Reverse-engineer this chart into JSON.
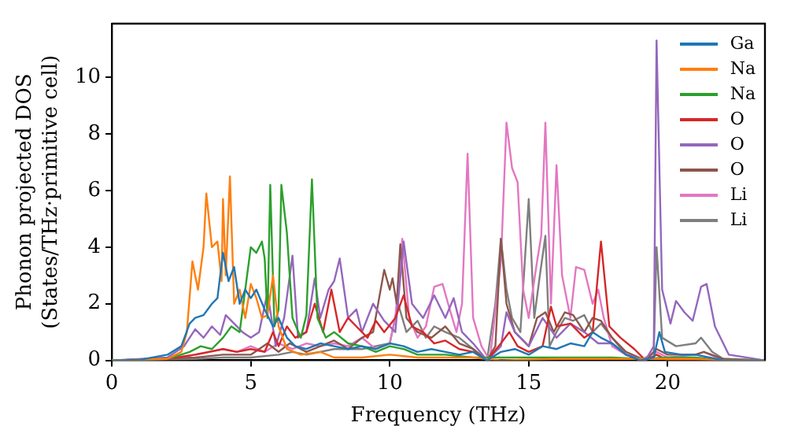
{
  "chart_data": {
    "type": "line",
    "xlabel": "Frequency (THz)",
    "ylabel": "Phonon projected DOS\n(States/THz·primitive cell)",
    "xlim": [
      0,
      23.5
    ],
    "xticks": [
      0,
      5,
      10,
      15,
      20
    ],
    "ylim": [
      0,
      11.9
    ],
    "yticks": [
      0,
      2,
      4,
      6,
      8,
      10
    ],
    "grid": false,
    "legend": "top right",
    "series": [
      {
        "name": "Ga",
        "color": "#1f77b4",
        "x": [
          0,
          1,
          2,
          2.5,
          2.8,
          3,
          3.3,
          3.6,
          3.8,
          4.0,
          4.2,
          4.4,
          4.6,
          4.8,
          5.0,
          5.2,
          5.5,
          5.8,
          6.0,
          6.3,
          6.6,
          7,
          7.5,
          8,
          8.5,
          9,
          9.5,
          10,
          10.5,
          11,
          11.5,
          12,
          12.5,
          13,
          13.5,
          14,
          14.5,
          15,
          15.5,
          16,
          16.5,
          17,
          17.3,
          17.6,
          18,
          18.5,
          19,
          19.5,
          19.7,
          19.9,
          20.5,
          21,
          21.5,
          22,
          23.5
        ],
        "values": [
          0,
          0.02,
          0.2,
          0.5,
          1.3,
          1.5,
          1.6,
          2.0,
          2.2,
          3.8,
          2.8,
          3.3,
          2.0,
          2.5,
          2.2,
          2.5,
          1.8,
          1.2,
          1.5,
          0.8,
          0.5,
          0.4,
          0.6,
          0.5,
          0.4,
          0.5,
          0.4,
          0.6,
          0.5,
          0.3,
          0.4,
          0.3,
          0.2,
          0.3,
          0,
          0.3,
          0.4,
          0.2,
          0.5,
          0.4,
          0.6,
          0.5,
          1.0,
          0.8,
          0.6,
          0.2,
          0,
          0.1,
          1.0,
          0.3,
          0.2,
          0.2,
          0.1,
          0,
          0
        ]
      },
      {
        "name": "Na",
        "color": "#ff7f0e",
        "x": [
          0,
          2,
          2.5,
          2.7,
          2.9,
          3.1,
          3.3,
          3.4,
          3.6,
          3.8,
          3.95,
          4.0,
          4.1,
          4.25,
          4.4,
          4.6,
          4.8,
          5.0,
          5.2,
          5.4,
          5.6,
          5.8,
          6.0,
          6.3,
          6.8,
          7.5,
          8,
          9,
          10,
          11,
          12,
          13,
          14,
          16,
          18,
          20,
          21,
          22,
          23.5
        ],
        "values": [
          0,
          0.05,
          0.3,
          1.0,
          3.5,
          2.5,
          4.0,
          5.9,
          4.0,
          4.2,
          2.8,
          5.7,
          3.0,
          6.5,
          2.0,
          2.5,
          1.5,
          2.7,
          2.2,
          1.5,
          1.6,
          3.0,
          1.2,
          0.4,
          0.2,
          0.3,
          0.1,
          0.1,
          0.2,
          0.1,
          0.1,
          0.1,
          0,
          0.05,
          0.05,
          0.05,
          0.05,
          0,
          0
        ]
      },
      {
        "name": "Na",
        "color": "#2ca02c",
        "x": [
          0,
          2,
          2.8,
          3.2,
          3.6,
          4.0,
          4.3,
          4.6,
          4.8,
          5.0,
          5.2,
          5.4,
          5.5,
          5.6,
          5.7,
          5.85,
          6.0,
          6.1,
          6.3,
          6.5,
          6.8,
          7.0,
          7.2,
          7.4,
          7.7,
          8,
          8.5,
          9,
          9.5,
          10,
          10.5,
          11,
          12,
          13,
          14,
          16,
          18,
          19,
          20,
          21,
          22,
          23.5
        ],
        "values": [
          0,
          0.05,
          0.3,
          0.5,
          0.4,
          0.8,
          1.2,
          1.0,
          2.5,
          4.0,
          3.8,
          4.2,
          3.6,
          1.5,
          6.2,
          1.2,
          1.8,
          6.2,
          4.5,
          1.5,
          0.8,
          1.6,
          6.4,
          1.5,
          0.8,
          1.0,
          0.6,
          0.5,
          0.3,
          0.5,
          0.4,
          0.2,
          0.2,
          0.1,
          0.1,
          0.1,
          0.1,
          0.05,
          0.1,
          0.1,
          0,
          0
        ]
      },
      {
        "name": "O",
        "color": "#d62728",
        "x": [
          0,
          2,
          3,
          3.5,
          4,
          4.5,
          5,
          5.5,
          5.8,
          6.0,
          6.3,
          6.6,
          7.0,
          7.3,
          7.6,
          7.9,
          8.2,
          8.5,
          8.8,
          9.2,
          9.5,
          9.8,
          10.2,
          10.5,
          10.8,
          11.2,
          11.6,
          12,
          12.5,
          13,
          13.5,
          14,
          14.3,
          14.6,
          15,
          15.5,
          15.8,
          16,
          16.5,
          17,
          17.3,
          17.6,
          17.9,
          18.3,
          18.8,
          19.2,
          19.6,
          20,
          23.5
        ],
        "values": [
          0,
          0.05,
          0.2,
          0.3,
          0.4,
          0.3,
          0.4,
          0.3,
          1.0,
          0.5,
          1.2,
          0.8,
          1.0,
          2.0,
          1.0,
          2.5,
          1.0,
          1.5,
          1.2,
          0.8,
          1.4,
          1.0,
          1.5,
          2.3,
          1.2,
          1.0,
          0.6,
          0.7,
          0.4,
          0.3,
          0,
          0.6,
          1.0,
          0.5,
          0.3,
          0.5,
          1.9,
          1.2,
          1.3,
          0.8,
          1.0,
          4.2,
          1.2,
          0.8,
          0.4,
          0,
          0.2,
          0,
          0
        ]
      },
      {
        "name": "O",
        "color": "#9467bd",
        "x": [
          0,
          2,
          2.6,
          3.0,
          3.3,
          3.6,
          3.9,
          4.1,
          4.4,
          4.7,
          5.0,
          5.3,
          5.6,
          5.9,
          6.2,
          6.5,
          6.7,
          7.0,
          7.3,
          7.5,
          7.8,
          8.0,
          8.2,
          8.5,
          8.8,
          9.0,
          9.4,
          9.8,
          10.2,
          10.5,
          10.8,
          11.2,
          11.6,
          12.0,
          12.3,
          12.6,
          13,
          13.5,
          14,
          14.2,
          14.5,
          15,
          15.5,
          16,
          16.5,
          17,
          17.5,
          18,
          18.5,
          19.2,
          19.5,
          19.6,
          19.8,
          20.1,
          20.3,
          20.6,
          20.9,
          21.2,
          21.4,
          21.7,
          22.2,
          23.5
        ],
        "values": [
          0,
          0.1,
          0.5,
          1.1,
          0.8,
          1.2,
          0.9,
          1.6,
          1.3,
          1.0,
          0.8,
          1.0,
          2.4,
          0.5,
          1.5,
          3.7,
          0.8,
          1.0,
          2.9,
          1.5,
          2.5,
          2.8,
          3.6,
          1.5,
          1.8,
          1.0,
          2.0,
          1.4,
          1.0,
          4.2,
          2.0,
          1.5,
          2.3,
          1.5,
          2.2,
          1.0,
          0.6,
          0,
          0.5,
          1.7,
          1.0,
          0.5,
          1.5,
          0.8,
          1.3,
          1.0,
          0.6,
          0.6,
          0.2,
          0,
          0.5,
          11.3,
          2.5,
          1.3,
          2.1,
          1.7,
          1.4,
          2.6,
          2.7,
          1.2,
          0.2,
          0
        ]
      },
      {
        "name": "O",
        "color": "#8c564b",
        "x": [
          0,
          3,
          4,
          5,
          5.6,
          6,
          6.4,
          7,
          7.5,
          8,
          8.5,
          9,
          9.4,
          9.8,
          10.0,
          10.1,
          10.25,
          10.38,
          10.6,
          11,
          11.5,
          12,
          12.5,
          13,
          13.5,
          13.8,
          14.0,
          14.2,
          14.5,
          15,
          15.3,
          15.6,
          15.9,
          16.3,
          16.6,
          17,
          17.3,
          17.6,
          18,
          18.5,
          19.2,
          19.6,
          20,
          21,
          21.3,
          22,
          23.5
        ],
        "values": [
          0,
          0.1,
          0.2,
          0.2,
          0.6,
          0.3,
          0.6,
          0.3,
          0.5,
          0.7,
          0.4,
          0.8,
          1.0,
          3.2,
          2.5,
          2.9,
          2.0,
          4.1,
          1.5,
          1.0,
          0.8,
          1.2,
          0.6,
          0.4,
          0,
          0.5,
          4.3,
          2.0,
          1.0,
          0.5,
          1.5,
          1.7,
          1.0,
          1.7,
          1.6,
          1.0,
          1.5,
          1.4,
          0.8,
          0.3,
          0,
          0.4,
          0.2,
          0.2,
          0.3,
          0.05,
          0
        ]
      },
      {
        "name": "Li",
        "color": "#e377c2",
        "x": [
          0,
          2,
          3,
          4,
          4.5,
          5,
          5.5,
          6,
          6.5,
          7,
          7.5,
          8,
          8.5,
          9,
          9.5,
          10,
          10.2,
          10.45,
          10.7,
          11,
          11.3,
          11.6,
          11.9,
          12.1,
          12.4,
          12.6,
          12.8,
          13.0,
          13.3,
          13.6,
          14.0,
          14.2,
          14.4,
          14.6,
          14.8,
          15.0,
          15.3,
          15.45,
          15.6,
          15.8,
          16.0,
          16.2,
          16.5,
          16.7,
          17.0,
          17.3,
          17.5,
          17.7,
          18,
          18.5,
          19,
          19.6,
          20,
          21,
          21.3,
          22,
          23.5
        ],
        "values": [
          0,
          0.05,
          0.2,
          0.4,
          0.3,
          0.5,
          0.3,
          0.6,
          0.4,
          0.6,
          0.5,
          0.6,
          0.5,
          0.8,
          0.4,
          0.6,
          1.5,
          4.3,
          1.5,
          0.8,
          1.2,
          2.6,
          2.7,
          2.0,
          1.0,
          2.0,
          7.3,
          1.5,
          0.5,
          0,
          3.5,
          8.4,
          6.8,
          6.3,
          2.5,
          1.5,
          3.5,
          4.4,
          8.4,
          2.0,
          6.9,
          3.0,
          1.5,
          3.3,
          3.2,
          2.0,
          2.5,
          1.5,
          0.5,
          0.2,
          0,
          0.3,
          0.1,
          0.2,
          0.3,
          0,
          0
        ]
      },
      {
        "name": "Li",
        "color": "#7f7f7f",
        "x": [
          0,
          3,
          4,
          5,
          6,
          6.5,
          7,
          8,
          9,
          10,
          10.3,
          10.6,
          11,
          11.3,
          11.6,
          12,
          12.5,
          13,
          13.5,
          13.8,
          14.0,
          14.2,
          14.4,
          14.7,
          15.0,
          15.2,
          15.4,
          15.6,
          15.75,
          16,
          16.3,
          16.6,
          17,
          17.3,
          17.6,
          18,
          18.5,
          19.2,
          19.5,
          19.6,
          19.8,
          20.3,
          21,
          21.2,
          21.6,
          22,
          23.5
        ],
        "values": [
          0,
          0.05,
          0.1,
          0.1,
          0.2,
          0.3,
          0.2,
          0.4,
          0.4,
          0.6,
          2.0,
          1.0,
          1.4,
          0.8,
          1.2,
          1.0,
          0.8,
          0.4,
          0,
          2.0,
          4.3,
          2.5,
          1.5,
          1.0,
          5.7,
          1.5,
          3.0,
          4.4,
          0.5,
          1.0,
          1.5,
          1.4,
          1.6,
          1.0,
          1.3,
          0.8,
          0.2,
          0,
          0.3,
          4.0,
          0.8,
          0.5,
          0.6,
          0.8,
          0.3,
          0.05,
          0
        ]
      }
    ]
  }
}
